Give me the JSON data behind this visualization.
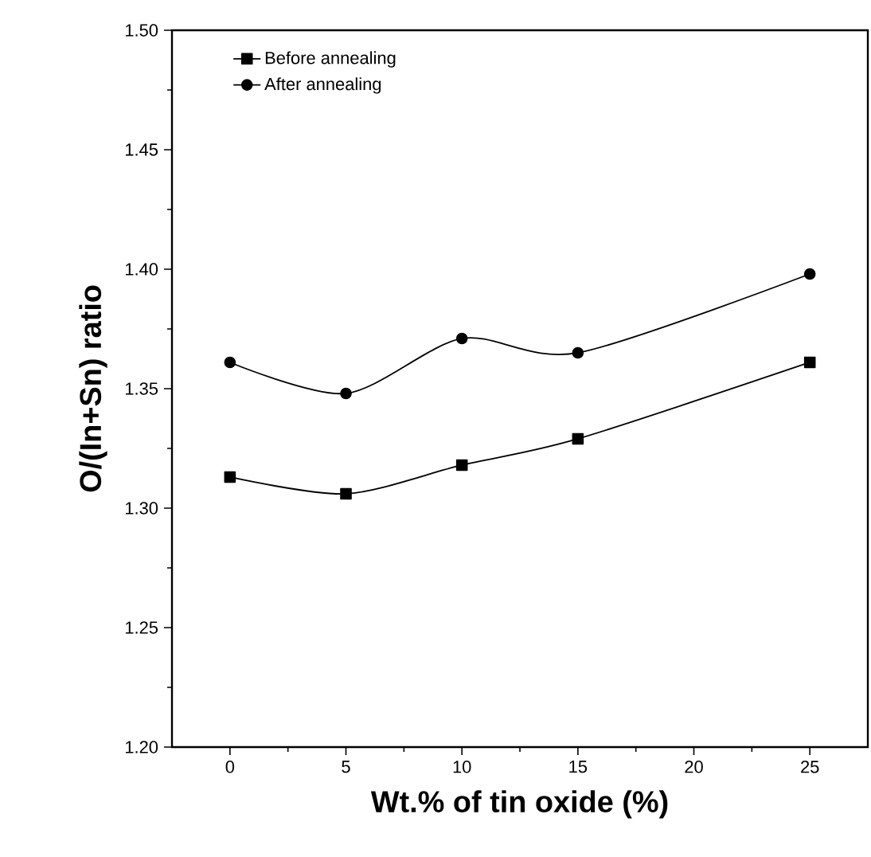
{
  "chart_data": {
    "type": "line",
    "xlabel": "Wt.% of tin oxide (%)",
    "ylabel": "O/(In+Sn) ratio",
    "x": [
      0,
      5,
      10,
      15,
      25
    ],
    "series": [
      {
        "name": "Before annealing",
        "color": "#000000",
        "marker": "square",
        "values": [
          1.313,
          1.306,
          1.318,
          1.329,
          1.361
        ]
      },
      {
        "name": "After annealing",
        "color": "#000000",
        "marker": "circle",
        "values": [
          1.361,
          1.348,
          1.371,
          1.365,
          1.398
        ]
      }
    ],
    "xlim": [
      -2.5,
      27.5
    ],
    "ylim": [
      1.2,
      1.5
    ],
    "xticks": [
      0,
      5,
      10,
      15,
      20,
      25
    ],
    "yticks": [
      {
        "value": 1.2,
        "label": "1.20"
      },
      {
        "value": 1.25,
        "label": "1.25"
      },
      {
        "value": 1.3,
        "label": "1.30"
      },
      {
        "value": 1.35,
        "label": "1.35"
      },
      {
        "value": 1.4,
        "label": "1.40"
      },
      {
        "value": 1.45,
        "label": "1.45"
      },
      {
        "value": 1.5,
        "label": "1.50"
      }
    ],
    "legend": "top left",
    "grid": false,
    "line_style": "solid"
  }
}
